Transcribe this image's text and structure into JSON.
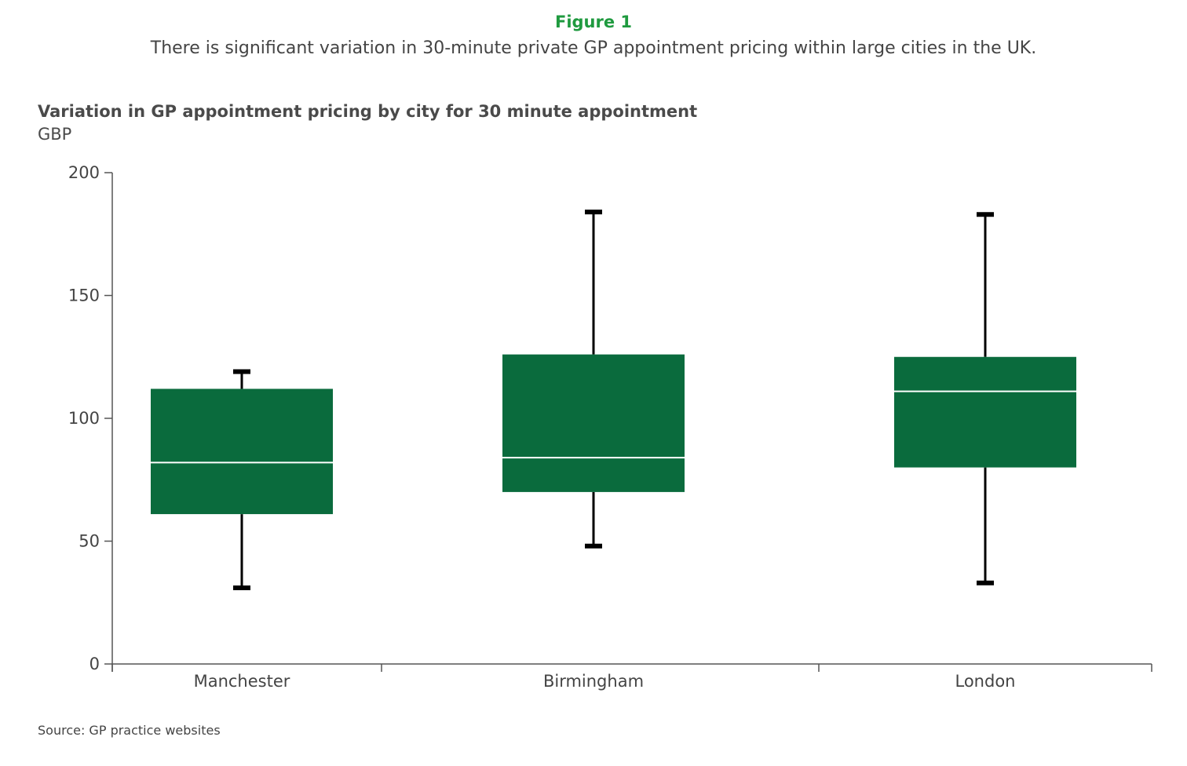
{
  "figure": {
    "label": "Figure 1",
    "subtitle": "There is significant variation in 30-minute private GP appointment pricing within large cities in the UK."
  },
  "chart_data": {
    "type": "box",
    "title": "Variation in GP appointment pricing by city for 30 minute appointment",
    "ylabel": "GBP",
    "xlabel": "",
    "ylim": [
      0,
      200
    ],
    "yticks": [
      0,
      50,
      100,
      150,
      200
    ],
    "categories": [
      "Manchester",
      "Birmingham",
      "London"
    ],
    "series": [
      {
        "category": "Manchester",
        "min": 31,
        "q1": 61,
        "median": 82,
        "q3": 112,
        "max": 119
      },
      {
        "category": "Birmingham",
        "min": 48,
        "q1": 70,
        "median": 84,
        "q3": 126,
        "max": 184
      },
      {
        "category": "London",
        "min": 33,
        "q1": 80,
        "median": 111,
        "q3": 125,
        "max": 183
      }
    ],
    "colors": {
      "box": "#0a6b3d",
      "median": "#ffffff",
      "whisker": "#000000",
      "axis": "#555555"
    },
    "grid": false,
    "legend": "none"
  },
  "source": "Source: GP practice websites"
}
